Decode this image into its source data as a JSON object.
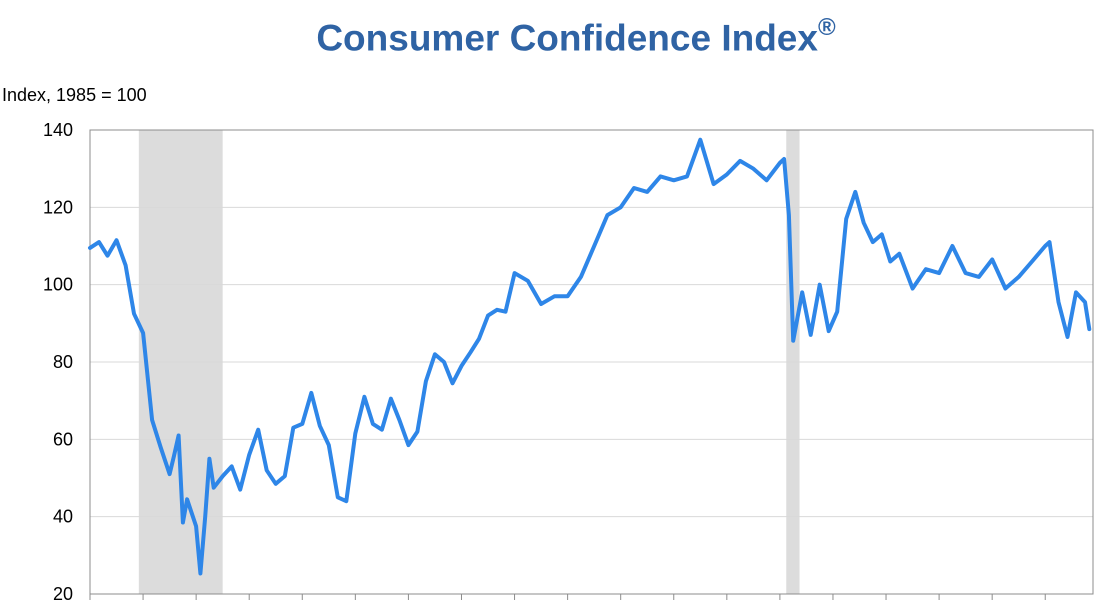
{
  "chart_data": {
    "type": "line",
    "title": "Consumer Confidence Index",
    "title_mark": "®",
    "ylabel": "Index, 1985 = 100",
    "xlabel": "",
    "ylim": [
      20,
      140
    ],
    "yticks": [
      20,
      40,
      60,
      80,
      100,
      120,
      140
    ],
    "grid": true,
    "legend": "none",
    "x_range": [
      2007.0,
      2025.9
    ],
    "x_minor_ticks_per_year": 1,
    "line_color": "#2e86e8",
    "recession_color": "#dcdcdc",
    "recession_bands": [
      {
        "start": 2007.92,
        "end": 2009.5
      },
      {
        "start": 2020.12,
        "end": 2020.37
      }
    ],
    "series": [
      {
        "x": [
          2007.0,
          2007.17,
          2007.33,
          2007.5,
          2007.67,
          2007.83,
          2008.0,
          2008.17,
          2008.33,
          2008.5,
          2008.58,
          2008.67,
          2008.75,
          2008.83,
          2009.0,
          2009.08,
          2009.17,
          2009.25,
          2009.33,
          2009.5,
          2009.67,
          2009.83,
          2010.0,
          2010.17,
          2010.33,
          2010.5,
          2010.67,
          2010.83,
          2011.0,
          2011.17,
          2011.33,
          2011.5,
          2011.67,
          2011.83,
          2012.0,
          2012.17,
          2012.33,
          2012.5,
          2012.67,
          2012.83,
          2013.0,
          2013.17,
          2013.33,
          2013.5,
          2013.67,
          2013.83,
          2014.0,
          2014.17,
          2014.33,
          2014.5,
          2014.67,
          2014.83,
          2015.0,
          2015.25,
          2015.5,
          2015.75,
          2016.0,
          2016.25,
          2016.5,
          2016.75,
          2017.0,
          2017.25,
          2017.5,
          2017.75,
          2018.0,
          2018.25,
          2018.5,
          2018.75,
          2019.0,
          2019.25,
          2019.5,
          2019.75,
          2020.0,
          2020.08,
          2020.17,
          2020.25,
          2020.42,
          2020.58,
          2020.75,
          2020.92,
          2021.08,
          2021.25,
          2021.42,
          2021.58,
          2021.75,
          2021.92,
          2022.08,
          2022.25,
          2022.5,
          2022.75,
          2023.0,
          2023.25,
          2023.5,
          2023.75,
          2024.0,
          2024.25,
          2024.5,
          2024.75,
          2025.0,
          2025.08,
          2025.25,
          2025.42,
          2025.58,
          2025.75,
          2025.83
        ],
        "values": [
          109.5,
          111.0,
          107.5,
          111.5,
          105.0,
          92.5,
          87.5,
          65.0,
          58.0,
          51.0,
          55.5,
          61.0,
          38.5,
          44.5,
          37.5,
          25.3,
          40.0,
          55.0,
          47.5,
          50.5,
          53.0,
          47.0,
          56.0,
          62.5,
          52.0,
          48.5,
          50.5,
          63.0,
          64.0,
          72.0,
          63.5,
          58.5,
          45.0,
          44.0,
          61.5,
          71.0,
          64.0,
          62.5,
          70.5,
          65.0,
          58.5,
          62.0,
          75.0,
          82.0,
          80.0,
          74.5,
          79.0,
          82.5,
          86.0,
          92.0,
          93.5,
          93.0,
          103.0,
          101.0,
          95.0,
          97.0,
          97.0,
          102.0,
          110.0,
          118.0,
          120.0,
          125.0,
          124.0,
          128.0,
          127.0,
          128.0,
          137.5,
          126.0,
          128.5,
          132.0,
          130.0,
          127.0,
          131.5,
          132.5,
          118.0,
          85.5,
          98.0,
          87.0,
          100.0,
          88.0,
          93.0,
          117.0,
          124.0,
          116.0,
          111.0,
          113.0,
          106.0,
          108.0,
          99.0,
          104.0,
          103.0,
          110.0,
          103.0,
          102.0,
          106.5,
          99.0,
          102.0,
          106.0,
          110.0,
          111.0,
          95.5,
          86.5,
          98.0,
          95.5,
          88.5
        ]
      }
    ]
  }
}
